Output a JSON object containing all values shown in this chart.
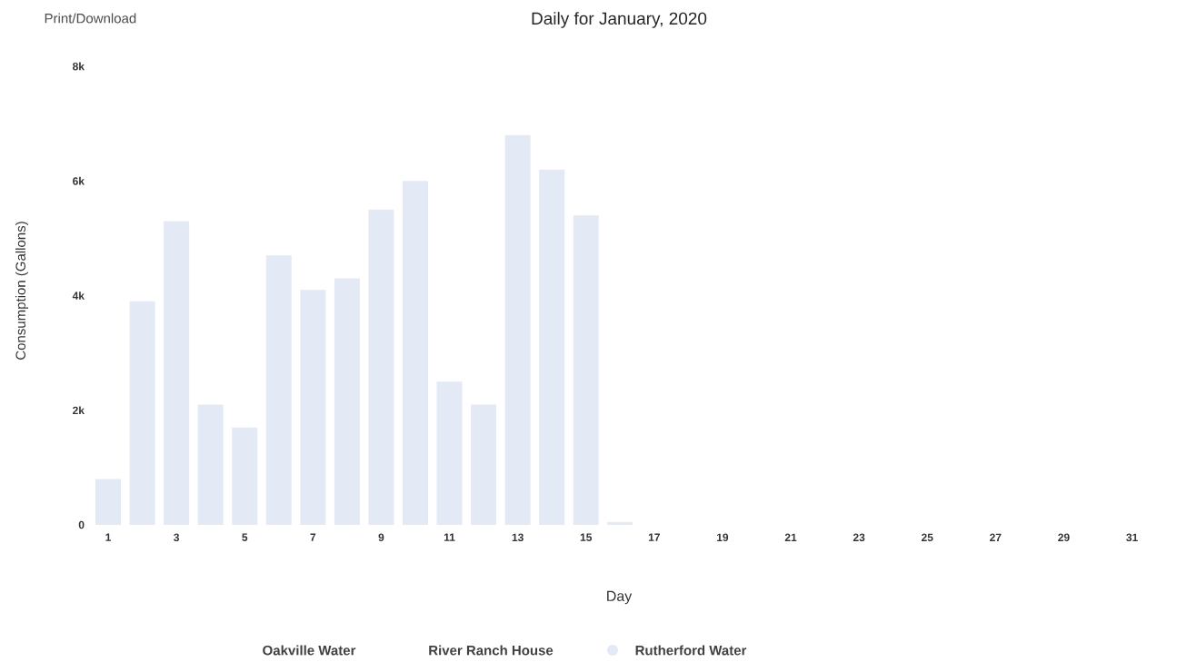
{
  "chart_data": {
    "type": "bar",
    "title": "Daily for January, 2020",
    "xlabel": "Day",
    "ylabel": "Consumption (Gallons)",
    "annotations": [
      "Print/Download"
    ],
    "categories": [
      "1",
      null,
      "3",
      null,
      "5",
      null,
      "7",
      null,
      "9",
      null,
      "11",
      null,
      "13",
      null,
      "15",
      null,
      "17",
      null,
      "19",
      null,
      "21",
      null,
      "23",
      null,
      "25",
      null,
      "27",
      null,
      "29",
      null,
      "31"
    ],
    "series": [
      {
        "name": "Oakville Water",
        "values": [
          null,
          null,
          null,
          null,
          null,
          null,
          null,
          null,
          null,
          null,
          null,
          null,
          null,
          null,
          null,
          null,
          null,
          null,
          null,
          null,
          null,
          null,
          null,
          null,
          null,
          null,
          null,
          null,
          null,
          null,
          null
        ]
      },
      {
        "name": "River Ranch House",
        "values": [
          null,
          null,
          null,
          null,
          null,
          null,
          null,
          null,
          null,
          null,
          null,
          null,
          null,
          null,
          null,
          null,
          null,
          null,
          null,
          null,
          null,
          null,
          null,
          null,
          null,
          null,
          null,
          null,
          null,
          null,
          null
        ]
      },
      {
        "name": "Rutherford Water",
        "color": "#e4e9f6",
        "values": [
          800,
          3900,
          5300,
          2100,
          1700,
          4700,
          4100,
          4300,
          5500,
          6000,
          2500,
          2100,
          6800,
          6200,
          5400,
          50,
          null,
          null,
          null,
          null,
          null,
          null,
          null,
          null,
          null,
          null,
          null,
          null,
          null,
          null,
          null
        ]
      }
    ],
    "ylim": [
      0,
      8000
    ],
    "yticks": [
      {
        "value": 0,
        "label": "0"
      },
      {
        "value": 2000,
        "label": "2k"
      },
      {
        "value": 4000,
        "label": "4k"
      },
      {
        "value": 6000,
        "label": "6k"
      },
      {
        "value": 8000,
        "label": "8k"
      }
    ],
    "grid": false,
    "legend": "bottom"
  }
}
